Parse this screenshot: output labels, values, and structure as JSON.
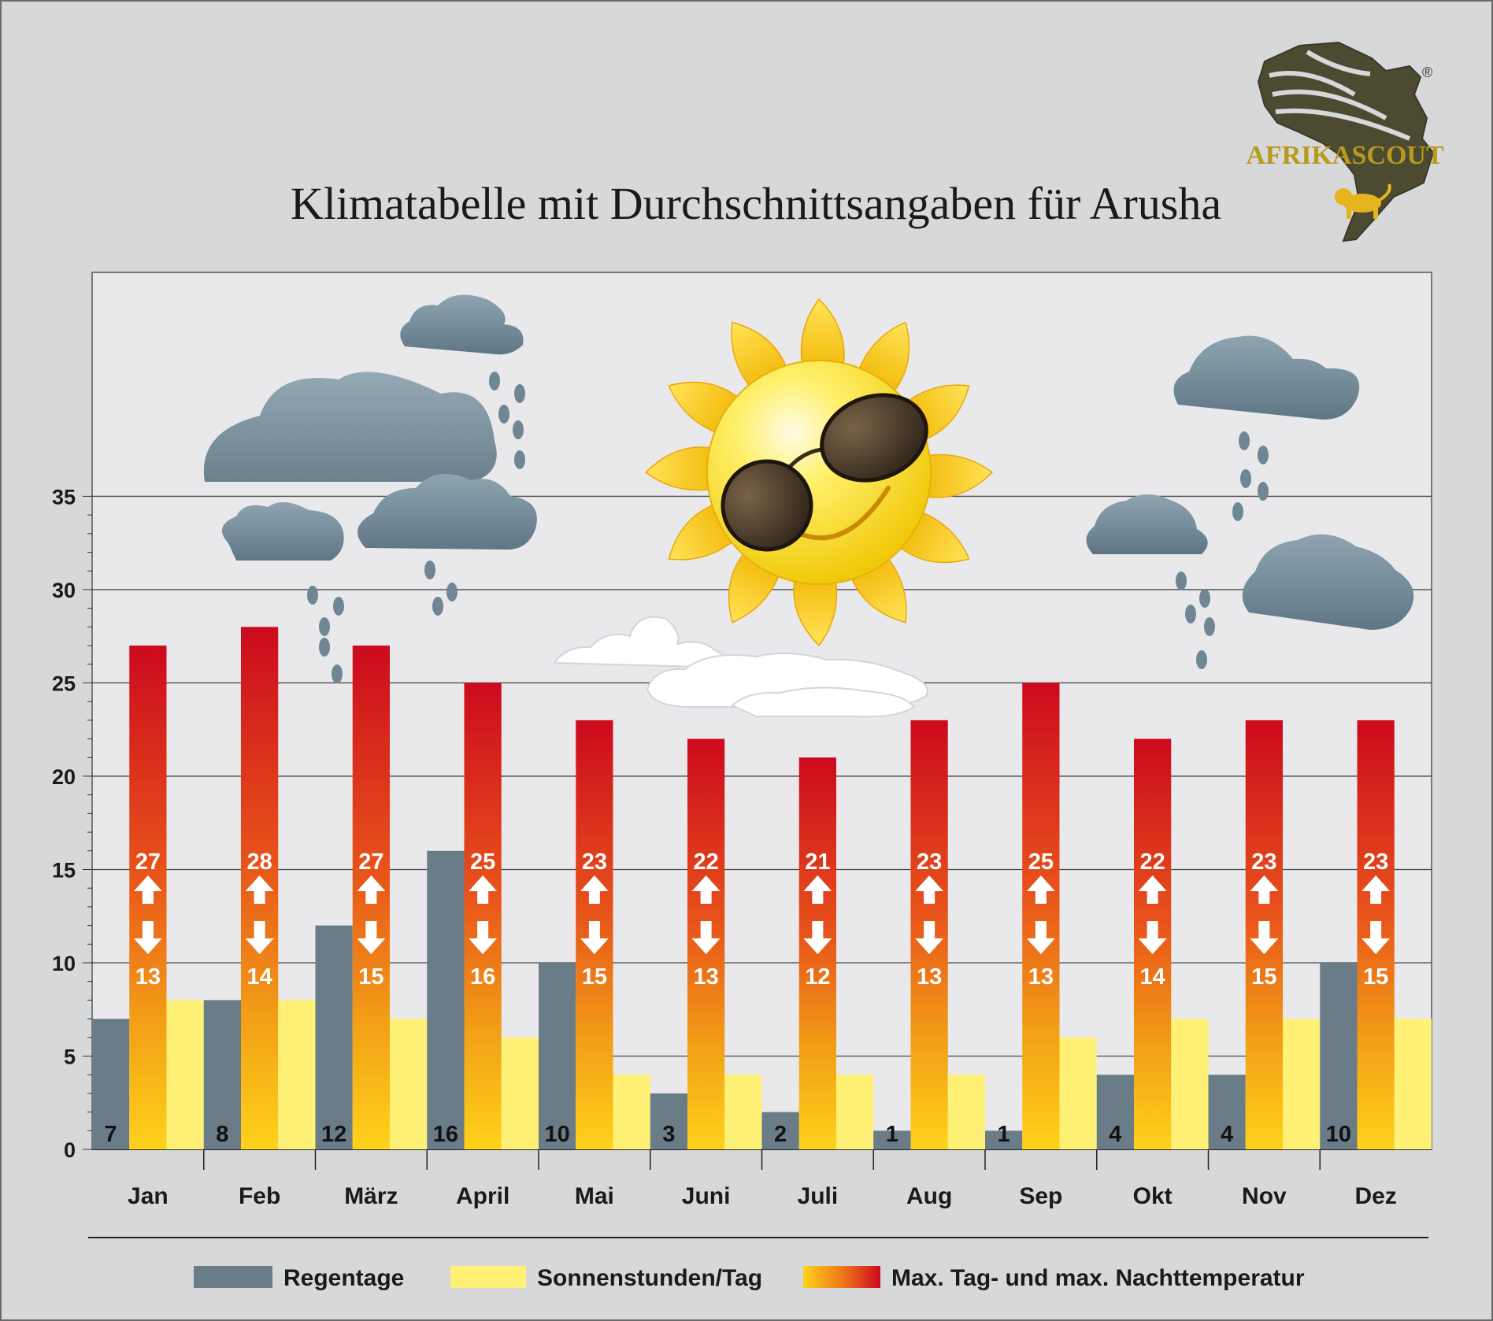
{
  "title": "Klimatabelle mit Durchschnittsangaben für Arusha",
  "logo": {
    "brand": "AFRIKASCOUT",
    "registered": "®"
  },
  "legend": {
    "rain": "Regentage",
    "sun": "Sonnenstunden/Tag",
    "temp": "Max. Tag- und max. Nachttemperatur"
  },
  "colors": {
    "rain": "#6a7c88",
    "sun": "#fff176",
    "temp_top": "#cc0a1e",
    "temp_bottom": "#ffd21a",
    "background": "#d7d8da",
    "plot_background": "#e9e9eb"
  },
  "chart_data": {
    "type": "bar",
    "categories": [
      "Jan",
      "Feb",
      "März",
      "April",
      "Mai",
      "Juni",
      "Juli",
      "Aug",
      "Sep",
      "Okt",
      "Nov",
      "Dez"
    ],
    "series": [
      {
        "name": "Regentage",
        "values": [
          7,
          8,
          12,
          16,
          10,
          3,
          2,
          1,
          1,
          4,
          4,
          10
        ]
      },
      {
        "name": "Sonnenstunden/Tag",
        "values": [
          8,
          8,
          7,
          6,
          4,
          4,
          4,
          4,
          6,
          7,
          7,
          7
        ]
      },
      {
        "name": "Max. Tag- und max. Nachttemperatur",
        "values": [
          27,
          28,
          27,
          25,
          23,
          22,
          21,
          23,
          25,
          22,
          23,
          23
        ],
        "night_values": [
          13,
          14,
          15,
          16,
          15,
          13,
          12,
          13,
          13,
          14,
          15,
          15
        ]
      }
    ],
    "yticks": [
      0,
      5,
      10,
      15,
      20,
      25,
      30,
      35
    ],
    "ylim": [
      0,
      47
    ],
    "grid": true,
    "legend_position": "bottom",
    "decorations": [
      "sun-with-sunglasses",
      "rain-clouds",
      "white-clouds"
    ]
  }
}
